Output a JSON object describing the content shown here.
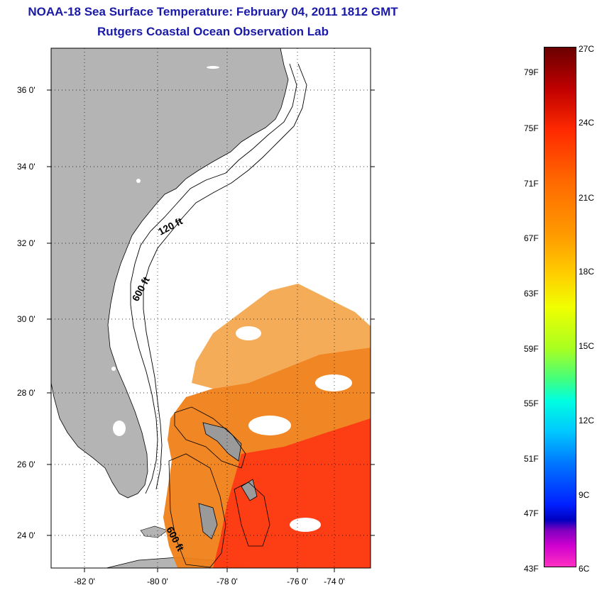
{
  "title": "NOAA-18 Sea Surface Temperature:  February 04, 2011 1812 GMT",
  "subtitle": "Rutgers Coastal Ocean Observation Lab",
  "map": {
    "lat_labels": [
      "36 0'",
      "34 0'",
      "32 0'",
      "30 0'",
      "28 0'",
      "26 0'",
      "24 0'"
    ],
    "lon_labels": [
      "-82 0'",
      "-80 0'",
      "-78 0'",
      "-76 0'",
      "-74 0'"
    ],
    "contour_labels": [
      "120 ft",
      "600 ft",
      "600 ft"
    ]
  },
  "colorbar": {
    "fahrenheit": [
      "79F",
      "75F",
      "71F",
      "67F",
      "63F",
      "59F",
      "55F",
      "51F",
      "47F",
      "43F"
    ],
    "celsius": [
      "27C",
      "24C",
      "21C",
      "18C",
      "15C",
      "12C",
      "9C",
      "6C"
    ]
  }
}
